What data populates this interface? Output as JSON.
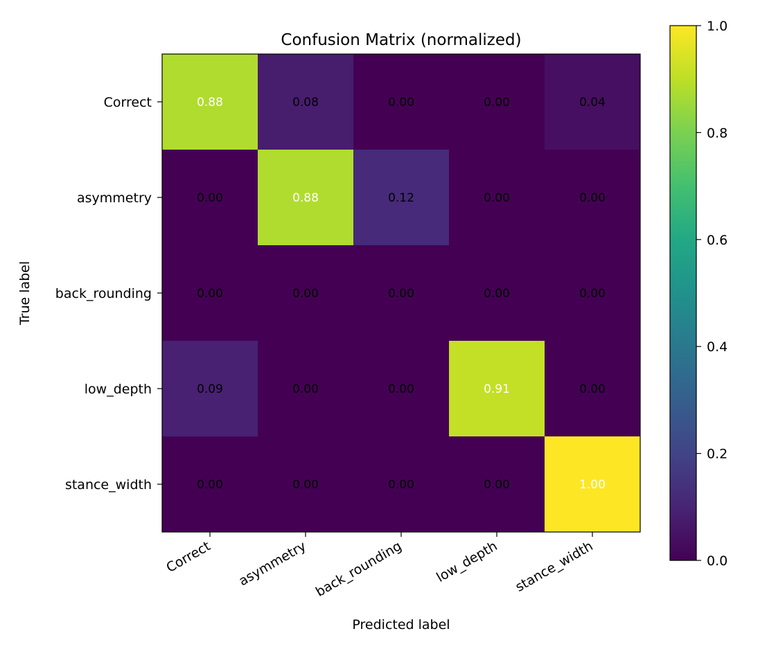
{
  "chart_data": {
    "type": "heatmap",
    "title": "Confusion Matrix (normalized)",
    "xlabel": "Predicted label",
    "ylabel": "True label",
    "x_categories": [
      "Correct",
      "asymmetry",
      "back_rounding",
      "low_depth",
      "stance_width"
    ],
    "y_categories": [
      "Correct",
      "asymmetry",
      "back_rounding",
      "low_depth",
      "stance_width"
    ],
    "values": [
      [
        0.88,
        0.08,
        0.0,
        0.0,
        0.04
      ],
      [
        0.0,
        0.88,
        0.12,
        0.0,
        0.0
      ],
      [
        0.0,
        0.0,
        0.0,
        0.0,
        0.0
      ],
      [
        0.09,
        0.0,
        0.0,
        0.91,
        0.0
      ],
      [
        0.0,
        0.0,
        0.0,
        0.0,
        1.0
      ]
    ],
    "value_format": "0.00",
    "colormap": "viridis",
    "vmin": 0.0,
    "vmax": 1.0,
    "colorbar_ticks": [
      "0.0",
      "0.2",
      "0.4",
      "0.6",
      "0.8",
      "1.0"
    ],
    "grid": false
  }
}
